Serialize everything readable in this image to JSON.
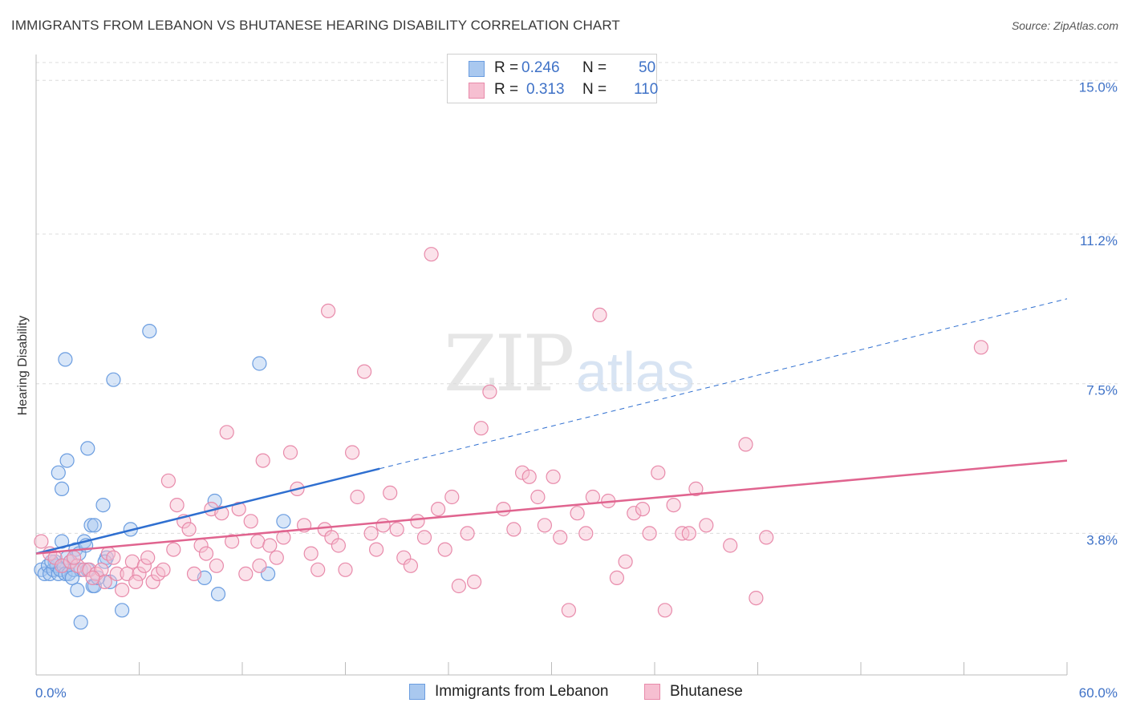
{
  "header": {
    "title": "IMMIGRANTS FROM LEBANON VS BHUTANESE HEARING DISABILITY CORRELATION CHART",
    "source": "Source: ZipAtlas.com"
  },
  "watermark": {
    "zip": "ZIP",
    "atlas": "atlas"
  },
  "legend_top": {
    "rows": [
      {
        "r_label": "R =",
        "r_value": "0.246",
        "n_label": "N =",
        "n_value": "50",
        "color": "#a9c8ef",
        "border": "#6b9de0"
      },
      {
        "r_label": "R =",
        "r_value": "0.313",
        "n_label": "N =",
        "n_value": "110",
        "color": "#f6bfd1",
        "border": "#e88aaa"
      }
    ]
  },
  "legend_bottom": {
    "items": [
      {
        "label": "Immigrants from Lebanon",
        "color": "#a9c8ef",
        "border": "#6b9de0"
      },
      {
        "label": "Bhutanese",
        "color": "#f6bfd1",
        "border": "#e88aaa"
      }
    ]
  },
  "chart_data": {
    "type": "scatter",
    "title": "IMMIGRANTS FROM LEBANON VS BHUTANESE HEARING DISABILITY CORRELATION CHART",
    "ylabel": "Hearing Disability",
    "xlabel": "",
    "xlim": [
      0,
      60
    ],
    "ylim": [
      0,
      15.6
    ],
    "x_tick_labels": [
      "0.0%",
      "60.0%"
    ],
    "y_tick_values": [
      3.8,
      7.5,
      11.2,
      15.0
    ],
    "y_tick_labels": [
      "3.8%",
      "7.5%",
      "11.2%",
      "15.0%"
    ],
    "grid": "horizontal dashed",
    "series": [
      {
        "name": "Immigrants from Lebanon",
        "color": "#6b9de0",
        "fill": "#a9c8ef",
        "trend": {
          "x": [
            0,
            20
          ],
          "y": [
            3.3,
            5.4
          ],
          "dashed_to": [
            60,
            9.6
          ]
        },
        "points": [
          [
            0.3,
            2.9
          ],
          [
            0.5,
            2.8
          ],
          [
            0.7,
            3.0
          ],
          [
            0.8,
            2.8
          ],
          [
            1.0,
            2.9
          ],
          [
            1.1,
            3.1
          ],
          [
            1.2,
            3.0
          ],
          [
            1.3,
            2.8
          ],
          [
            1.4,
            2.9
          ],
          [
            1.5,
            3.6
          ],
          [
            1.6,
            3.0
          ],
          [
            1.7,
            2.8
          ],
          [
            1.8,
            3.2
          ],
          [
            1.9,
            2.8
          ],
          [
            2.0,
            3.1
          ],
          [
            2.2,
            2.9
          ],
          [
            2.3,
            3.4
          ],
          [
            2.4,
            2.4
          ],
          [
            2.5,
            3.3
          ],
          [
            2.6,
            2.9
          ],
          [
            2.8,
            3.6
          ],
          [
            2.9,
            3.5
          ],
          [
            3.0,
            2.9
          ],
          [
            3.3,
            2.5
          ],
          [
            3.4,
            2.5
          ],
          [
            1.3,
            5.3
          ],
          [
            1.5,
            4.9
          ],
          [
            1.7,
            8.1
          ],
          [
            1.8,
            5.6
          ],
          [
            2.6,
            1.6
          ],
          [
            3.0,
            5.9
          ],
          [
            3.2,
            4.0
          ],
          [
            3.4,
            4.0
          ],
          [
            3.9,
            4.5
          ],
          [
            4.1,
            3.2
          ],
          [
            4.3,
            2.6
          ],
          [
            4.5,
            7.6
          ],
          [
            5.0,
            1.9
          ],
          [
            5.5,
            3.9
          ],
          [
            6.6,
            8.8
          ],
          [
            9.8,
            2.7
          ],
          [
            10.4,
            4.6
          ],
          [
            10.6,
            2.3
          ],
          [
            13.0,
            8.0
          ],
          [
            13.5,
            2.8
          ],
          [
            14.4,
            4.1
          ],
          [
            4.0,
            3.1
          ],
          [
            3.6,
            2.7
          ],
          [
            2.1,
            2.7
          ],
          [
            0.9,
            3.1
          ]
        ]
      },
      {
        "name": "Bhutanese",
        "color": "#e88aaa",
        "fill": "#f6bfd1",
        "trend": {
          "x": [
            0,
            60
          ],
          "y": [
            3.3,
            5.6
          ]
        },
        "points": [
          [
            0.3,
            3.6
          ],
          [
            0.8,
            3.3
          ],
          [
            1.1,
            3.2
          ],
          [
            1.5,
            3.0
          ],
          [
            2.0,
            3.1
          ],
          [
            2.4,
            3.0
          ],
          [
            2.8,
            2.9
          ],
          [
            3.1,
            2.9
          ],
          [
            3.5,
            2.8
          ],
          [
            3.8,
            2.9
          ],
          [
            4.0,
            2.6
          ],
          [
            4.2,
            3.3
          ],
          [
            4.5,
            3.2
          ],
          [
            4.7,
            2.8
          ],
          [
            5.0,
            2.4
          ],
          [
            5.3,
            2.8
          ],
          [
            5.6,
            3.1
          ],
          [
            6.0,
            2.8
          ],
          [
            6.3,
            3.0
          ],
          [
            6.8,
            2.6
          ],
          [
            7.1,
            2.8
          ],
          [
            7.4,
            2.9
          ],
          [
            7.7,
            5.1
          ],
          [
            8.2,
            4.5
          ],
          [
            8.6,
            4.1
          ],
          [
            8.9,
            3.9
          ],
          [
            9.2,
            2.8
          ],
          [
            9.6,
            3.5
          ],
          [
            9.9,
            3.3
          ],
          [
            10.2,
            4.4
          ],
          [
            10.5,
            3.0
          ],
          [
            10.8,
            4.3
          ],
          [
            11.1,
            6.3
          ],
          [
            11.4,
            3.6
          ],
          [
            11.8,
            4.4
          ],
          [
            12.2,
            2.8
          ],
          [
            12.5,
            4.1
          ],
          [
            12.9,
            3.6
          ],
          [
            13.2,
            5.6
          ],
          [
            13.6,
            3.5
          ],
          [
            14.0,
            3.2
          ],
          [
            14.4,
            3.7
          ],
          [
            14.8,
            5.8
          ],
          [
            15.2,
            4.9
          ],
          [
            15.6,
            4.0
          ],
          [
            16.0,
            3.3
          ],
          [
            16.4,
            2.9
          ],
          [
            16.8,
            3.9
          ],
          [
            17.2,
            3.7
          ],
          [
            17.6,
            3.5
          ],
          [
            18.0,
            2.9
          ],
          [
            18.4,
            5.8
          ],
          [
            18.7,
            4.7
          ],
          [
            19.1,
            7.8
          ],
          [
            19.5,
            3.8
          ],
          [
            19.8,
            3.4
          ],
          [
            20.2,
            4.0
          ],
          [
            20.6,
            4.8
          ],
          [
            21.0,
            3.9
          ],
          [
            21.4,
            3.2
          ],
          [
            21.8,
            3.0
          ],
          [
            22.2,
            4.1
          ],
          [
            22.6,
            3.7
          ],
          [
            23.0,
            10.7
          ],
          [
            23.4,
            4.4
          ],
          [
            23.8,
            3.4
          ],
          [
            24.2,
            4.7
          ],
          [
            24.6,
            2.5
          ],
          [
            25.1,
            3.8
          ],
          [
            25.5,
            2.6
          ],
          [
            25.9,
            6.4
          ],
          [
            26.4,
            7.3
          ],
          [
            27.2,
            4.4
          ],
          [
            27.8,
            3.9
          ],
          [
            28.3,
            5.3
          ],
          [
            28.7,
            5.2
          ],
          [
            29.2,
            4.7
          ],
          [
            29.6,
            4.0
          ],
          [
            30.1,
            5.2
          ],
          [
            30.5,
            3.7
          ],
          [
            31.0,
            1.9
          ],
          [
            31.5,
            4.3
          ],
          [
            32.0,
            3.8
          ],
          [
            32.4,
            4.7
          ],
          [
            32.8,
            9.2
          ],
          [
            33.3,
            4.6
          ],
          [
            33.8,
            2.7
          ],
          [
            34.3,
            3.1
          ],
          [
            34.8,
            4.3
          ],
          [
            35.3,
            4.4
          ],
          [
            35.7,
            3.8
          ],
          [
            36.2,
            5.3
          ],
          [
            36.6,
            1.9
          ],
          [
            37.1,
            4.5
          ],
          [
            37.6,
            3.8
          ],
          [
            38.0,
            3.8
          ],
          [
            38.4,
            4.9
          ],
          [
            39.0,
            4.0
          ],
          [
            40.4,
            3.5
          ],
          [
            41.3,
            6.0
          ],
          [
            41.9,
            2.2
          ],
          [
            42.5,
            3.7
          ],
          [
            17.0,
            9.3
          ],
          [
            55.0,
            8.4
          ],
          [
            13.0,
            3.0
          ],
          [
            8.0,
            3.4
          ],
          [
            6.5,
            3.2
          ],
          [
            5.8,
            2.6
          ],
          [
            3.3,
            2.7
          ],
          [
            2.2,
            3.2
          ]
        ]
      }
    ]
  }
}
